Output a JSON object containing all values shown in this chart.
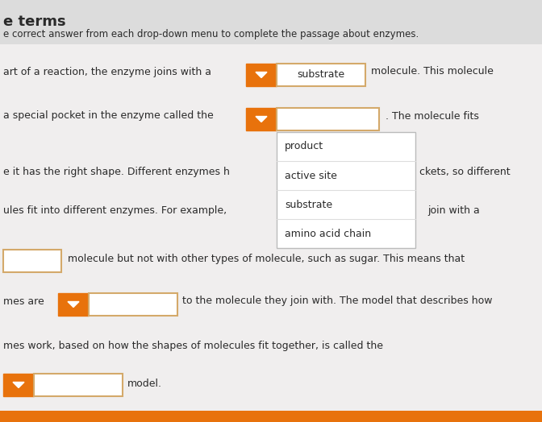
{
  "bg_color": "#f0eeee",
  "title_text": "e terms",
  "subtitle_text": "e correct answer from each drop-down menu to complete the passage about enzymes.",
  "line1_left": "art of a reaction, the enzyme joins with a",
  "line1_right": "molecule. This molecule",
  "line2_left": "a special pocket in the enzyme called the",
  "line2_right": ". The molecule fits",
  "line3_left": "e it has the right shape. Different enzymes h",
  "line3_right": "ckets, so different",
  "line4_left": "ules fit into different enzymes. For example,",
  "line4_right": "join with a",
  "line5_right": "molecule but not with other types of molecule, such as sugar. This means that",
  "line6_left": "mes are",
  "line6_right": "to the molecule they join with. The model that describes how",
  "line7": "mes work, based on how the shapes of molecules fit together, is called the",
  "line8_right": "model.",
  "dropdown1_text": "substrate",
  "orange_color": "#E8720C",
  "dropdown_open_items": [
    "product",
    "active site",
    "substrate",
    "amino acid chain"
  ],
  "header_bg": "#dcdcdc",
  "text_color": "#2a2a2a",
  "menu_border": "#bbbbbb",
  "box_border": "#d4a96a"
}
